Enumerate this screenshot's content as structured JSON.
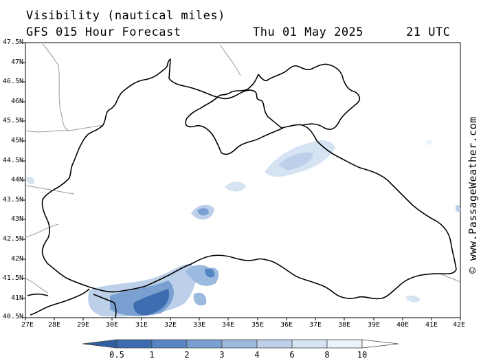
{
  "header": {
    "title": "Visibility (nautical miles)",
    "subtitle": "GFS 015 Hour Forecast",
    "date": "Thu 01 May 2025",
    "time": "21 UTC"
  },
  "credit": "© www.PassageWeather.com",
  "map": {
    "lat_labels": [
      "47.5N",
      "47N",
      "46.5N",
      "46N",
      "45.5N",
      "45N",
      "44.5N",
      "44N",
      "43.5N",
      "43N",
      "42.5N",
      "42N",
      "41.5N",
      "41N",
      "40.5N"
    ],
    "lon_labels": [
      "27E",
      "28E",
      "29E",
      "30E",
      "31E",
      "32E",
      "33E",
      "34E",
      "35E",
      "36E",
      "37E",
      "38E",
      "39E",
      "40E",
      "41E",
      "42E"
    ],
    "lat_range": [
      40.5,
      47.5
    ],
    "lon_range": [
      27,
      42
    ],
    "colors": {
      "coast": "#000000",
      "border": "#9a9a9a",
      "sea": "#ffffff"
    }
  },
  "colorbar": {
    "labels": [
      "0.5",
      "1",
      "2",
      "3",
      "4",
      "6",
      "8",
      "10"
    ],
    "colors": [
      "#3d6db0",
      "#5585c4",
      "#7aa0d2",
      "#9cb9df",
      "#bcd0ea",
      "#d6e3f3",
      "#ecf2fa"
    ]
  }
}
